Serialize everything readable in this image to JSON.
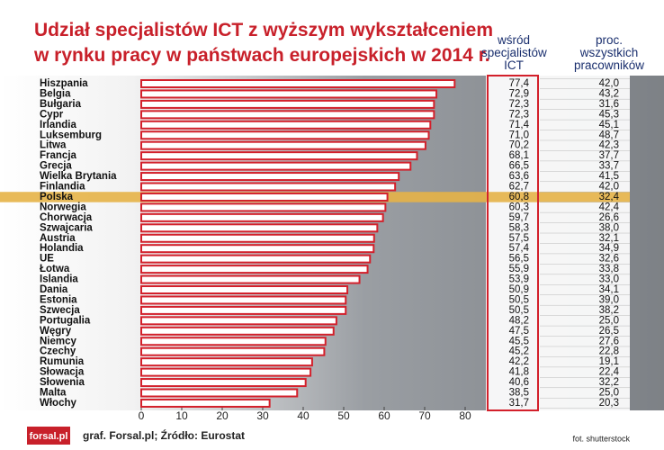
{
  "chart_data": {
    "type": "bar",
    "title": [
      "Udział specjalistów ICT z wyższym wykształceniem",
      "w rynku pracy w państwach europejskich w 2014 r."
    ],
    "categories": [
      "Hiszpania",
      "Belgia",
      "Bułgaria",
      "Cypr",
      "Irlandia",
      "Luksemburg",
      "Litwa",
      "Francja",
      "Grecja",
      "Wielka Brytania",
      "Finlandia",
      "Polska",
      "Norwegia",
      "Chorwacja",
      "Szwajcaria",
      "Austria",
      "Holandia",
      "UE",
      "Łotwa",
      "Islandia",
      "Dania",
      "Estonia",
      "Szwecja",
      "Portugalia",
      "Węgry",
      "Niemcy",
      "Czechy",
      "Rumunia",
      "Słowacja",
      "Słowenia",
      "Malta",
      "Włochy"
    ],
    "series": [
      {
        "name": "wśród specjalistów ICT",
        "color": "#d3202b",
        "values": [
          77.4,
          72.9,
          72.3,
          72.3,
          71.4,
          71.0,
          70.2,
          68.1,
          66.5,
          63.6,
          62.7,
          60.8,
          60.3,
          59.7,
          58.3,
          57.5,
          57.4,
          56.5,
          55.9,
          53.9,
          50.9,
          50.5,
          50.5,
          48.2,
          47.5,
          45.5,
          45.2,
          42.2,
          41.8,
          40.6,
          38.5,
          31.7
        ],
        "value_labels": [
          "77,4",
          "72,9",
          "72,3",
          "72,3",
          "71,4",
          "71,0",
          "70,2",
          "68,1",
          "66,5",
          "63,6",
          "62,7",
          "60,8",
          "60,3",
          "59,7",
          "58,3",
          "57,5",
          "57,4",
          "56,5",
          "55,9",
          "53,9",
          "50,9",
          "50,5",
          "50,5",
          "48,2",
          "47,5",
          "45,5",
          "45,2",
          "42,2",
          "41,8",
          "40,6",
          "38,5",
          "31,7"
        ]
      },
      {
        "name": "proc. wszystkich pracowników",
        "color": "#1a2f6e",
        "values": [
          42.0,
          43.2,
          31.6,
          45.3,
          45.1,
          48.7,
          42.3,
          37.7,
          33.7,
          41.5,
          42.0,
          32.4,
          42.4,
          26.6,
          38.0,
          32.1,
          34.9,
          32.6,
          33.8,
          33.0,
          34.1,
          39.0,
          38.2,
          25.0,
          26.5,
          27.6,
          22.8,
          19.1,
          22.4,
          32.2,
          25.0,
          20.3
        ],
        "value_labels": [
          "42,0",
          "43,2",
          "31,6",
          "45,3",
          "45,1",
          "48,7",
          "42,3",
          "37,7",
          "33,7",
          "41,5",
          "42,0",
          "32,4",
          "42,4",
          "26,6",
          "38,0",
          "32,1",
          "34,9",
          "32,6",
          "33,8",
          "33,0",
          "34,1",
          "39,0",
          "38,2",
          "25,0",
          "26,5",
          "27,6",
          "22,8",
          "19,1",
          "22,4",
          "32,2",
          "25,0",
          "20,3"
        ]
      }
    ],
    "xlim": [
      0,
      80
    ],
    "xticks": [
      0,
      10,
      20,
      30,
      40,
      50,
      60,
      70,
      80
    ],
    "highlight_index": 11,
    "highlight_color": "#e6b347",
    "logo": "forsal.pl",
    "source": "graf. Forsal.pl; Źródło: Eurostat",
    "credit": "fot. shutterstock"
  }
}
